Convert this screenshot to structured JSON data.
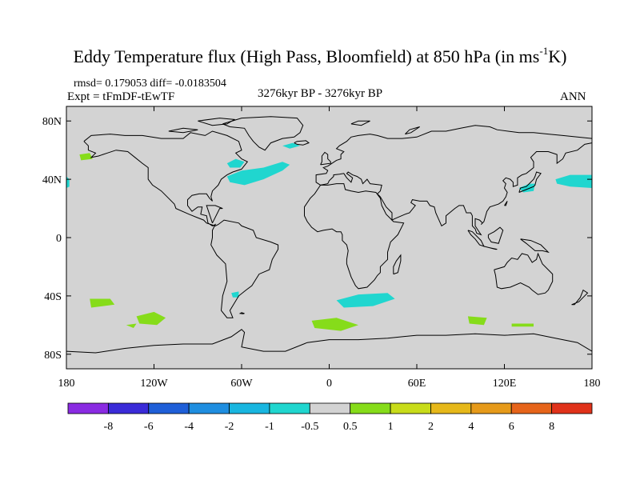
{
  "title": {
    "main": "Eddy Temperature flux (High Pass, Bloomfield) at 850 hPa (in ms",
    "superscript": "-1",
    "unit_end": "K)"
  },
  "subtitle": {
    "stats": "rmsd= 0.179053 diff= -0.0183504",
    "experiment": "Expt = tFmDF-tEwTF",
    "period": "3276kyr BP - 3276kyr BP",
    "season": "ANN"
  },
  "map": {
    "projection": "cylindrical equidistant",
    "lon_range": [
      -180,
      180
    ],
    "lat_range": [
      -90,
      90
    ],
    "land_fill": "#d3d3d3",
    "y_ticks": [
      {
        "lat": 80,
        "label": "80N"
      },
      {
        "lat": 40,
        "label": "40N"
      },
      {
        "lat": 0,
        "label": "0"
      },
      {
        "lat": -40,
        "label": "40S"
      },
      {
        "lat": -80,
        "label": "80S"
      }
    ],
    "x_ticks": [
      {
        "lon": -180,
        "label": "180"
      },
      {
        "lon": -120,
        "label": "120W"
      },
      {
        "lon": -60,
        "label": "60W"
      },
      {
        "lon": 0,
        "label": "0"
      },
      {
        "lon": 60,
        "label": "60E"
      },
      {
        "lon": 120,
        "label": "120E"
      },
      {
        "lon": 180,
        "label": "180"
      }
    ]
  },
  "colorbar": {
    "colors": [
      "#8a2be2",
      "#3a2bd8",
      "#1f5fd8",
      "#1f8ee0",
      "#19b6e0",
      "#20d6cf",
      "#d3d3d3",
      "#86dc1a",
      "#c8dc1a",
      "#e6b81a",
      "#e69a1a",
      "#e6641a",
      "#e0321a"
    ],
    "labels": [
      "-8",
      "-6",
      "-4",
      "-2",
      "-1",
      "-0.5",
      "0.5",
      "1",
      "2",
      "4",
      "6",
      "8"
    ]
  },
  "chart_data": {
    "type": "heatmap",
    "variable": "Eddy Temperature flux (High Pass, Bloomfield) at 850 hPa",
    "units": "ms-1K",
    "levels": [
      -8,
      -6,
      -4,
      -2,
      -1,
      -0.5,
      0.5,
      1,
      2,
      4,
      6,
      8
    ],
    "regions": [
      {
        "name": "North Atlantic",
        "value_class": "-1 to -0.5",
        "color": "#20d6cf",
        "lonlat": [
          [
            -70,
            42
          ],
          [
            -60,
            46
          ],
          [
            -45,
            48
          ],
          [
            -32,
            52
          ],
          [
            -27,
            50
          ],
          [
            -32,
            46
          ],
          [
            -45,
            40
          ],
          [
            -58,
            36
          ],
          [
            -68,
            38
          ]
        ]
      },
      {
        "name": "Labrador Sea",
        "value_class": "-1 to -0.5",
        "color": "#20d6cf",
        "lonlat": [
          [
            -70,
            51
          ],
          [
            -64,
            54
          ],
          [
            -58,
            52
          ],
          [
            -61,
            48
          ],
          [
            -68,
            48
          ]
        ]
      },
      {
        "name": "Iceland region",
        "value_class": "-1 to -0.5",
        "color": "#20d6cf",
        "lonlat": [
          [
            -32,
            63
          ],
          [
            -25,
            65
          ],
          [
            -20,
            63
          ],
          [
            -27,
            61
          ]
        ]
      },
      {
        "name": "Japan / NW Pacific",
        "value_class": "-1 to -0.5",
        "color": "#20d6cf",
        "lonlat": [
          [
            130,
            34
          ],
          [
            137,
            37
          ],
          [
            141,
            37
          ],
          [
            140,
            32
          ],
          [
            133,
            31
          ]
        ]
      },
      {
        "name": "Central North Pacific",
        "value_class": "-1 to -0.5",
        "color": "#20d6cf",
        "lonlat": [
          [
            155,
            40
          ],
          [
            165,
            43
          ],
          [
            180,
            43
          ],
          [
            180,
            34
          ],
          [
            165,
            35
          ],
          [
            156,
            37
          ]
        ]
      },
      {
        "name": "East Pacific edge",
        "value_class": "-1 to -0.5",
        "color": "#20d6cf",
        "lonlat": [
          [
            -180,
            42
          ],
          [
            -178,
            40
          ],
          [
            -178,
            35
          ],
          [
            -180,
            34
          ]
        ]
      },
      {
        "name": "South Atlantic / Indian",
        "value_class": "-1 to -0.5",
        "color": "#20d6cf",
        "lonlat": [
          [
            5,
            -43
          ],
          [
            20,
            -39
          ],
          [
            40,
            -38
          ],
          [
            45,
            -42
          ],
          [
            30,
            -47
          ],
          [
            10,
            -48
          ]
        ]
      },
      {
        "name": "Off Argentina",
        "value_class": "-1 to -0.5",
        "color": "#20d6cf",
        "lonlat": [
          [
            -67,
            -38
          ],
          [
            -62,
            -37
          ],
          [
            -62,
            -41
          ],
          [
            -66,
            -41
          ]
        ]
      },
      {
        "name": "Gulf of Alaska",
        "value_class": "0.5 to 1",
        "color": "#86dc1a",
        "lonlat": [
          [
            -171,
            57
          ],
          [
            -164,
            58
          ],
          [
            -162,
            54
          ],
          [
            -170,
            53
          ]
        ]
      },
      {
        "name": "South Pacific west",
        "value_class": "0.5 to 1",
        "color": "#86dc1a",
        "lonlat": [
          [
            -164,
            -42
          ],
          [
            -150,
            -42
          ],
          [
            -147,
            -46
          ],
          [
            -163,
            -48
          ]
        ]
      },
      {
        "name": "South Pacific central",
        "value_class": "0.5 to 1",
        "color": "#86dc1a",
        "lonlat": [
          [
            -132,
            -54
          ],
          [
            -120,
            -51
          ],
          [
            -112,
            -55
          ],
          [
            -118,
            -60
          ],
          [
            -130,
            -59
          ]
        ]
      },
      {
        "name": "South Pacific small",
        "value_class": "0.5 to 1",
        "color": "#86dc1a",
        "lonlat": [
          [
            -139,
            -60
          ],
          [
            -132,
            -59
          ],
          [
            -134,
            -62
          ]
        ]
      },
      {
        "name": "Southern Ocean Atlantic",
        "value_class": "0.5 to 1",
        "color": "#86dc1a",
        "lonlat": [
          [
            -12,
            -57
          ],
          [
            5,
            -55
          ],
          [
            20,
            -60
          ],
          [
            8,
            -64
          ],
          [
            -10,
            -62
          ]
        ]
      },
      {
        "name": "Southern Ocean Indian",
        "value_class": "0.5 to 1",
        "color": "#86dc1a",
        "lonlat": [
          [
            95,
            -54
          ],
          [
            108,
            -55
          ],
          [
            106,
            -60
          ],
          [
            96,
            -59
          ]
        ]
      },
      {
        "name": "Southern Ocean Pacific sector",
        "value_class": "0.5 to 1",
        "color": "#86dc1a",
        "lonlat": [
          [
            125,
            -59
          ],
          [
            140,
            -59
          ],
          [
            140,
            -61
          ],
          [
            125,
            -61
          ]
        ]
      }
    ]
  }
}
